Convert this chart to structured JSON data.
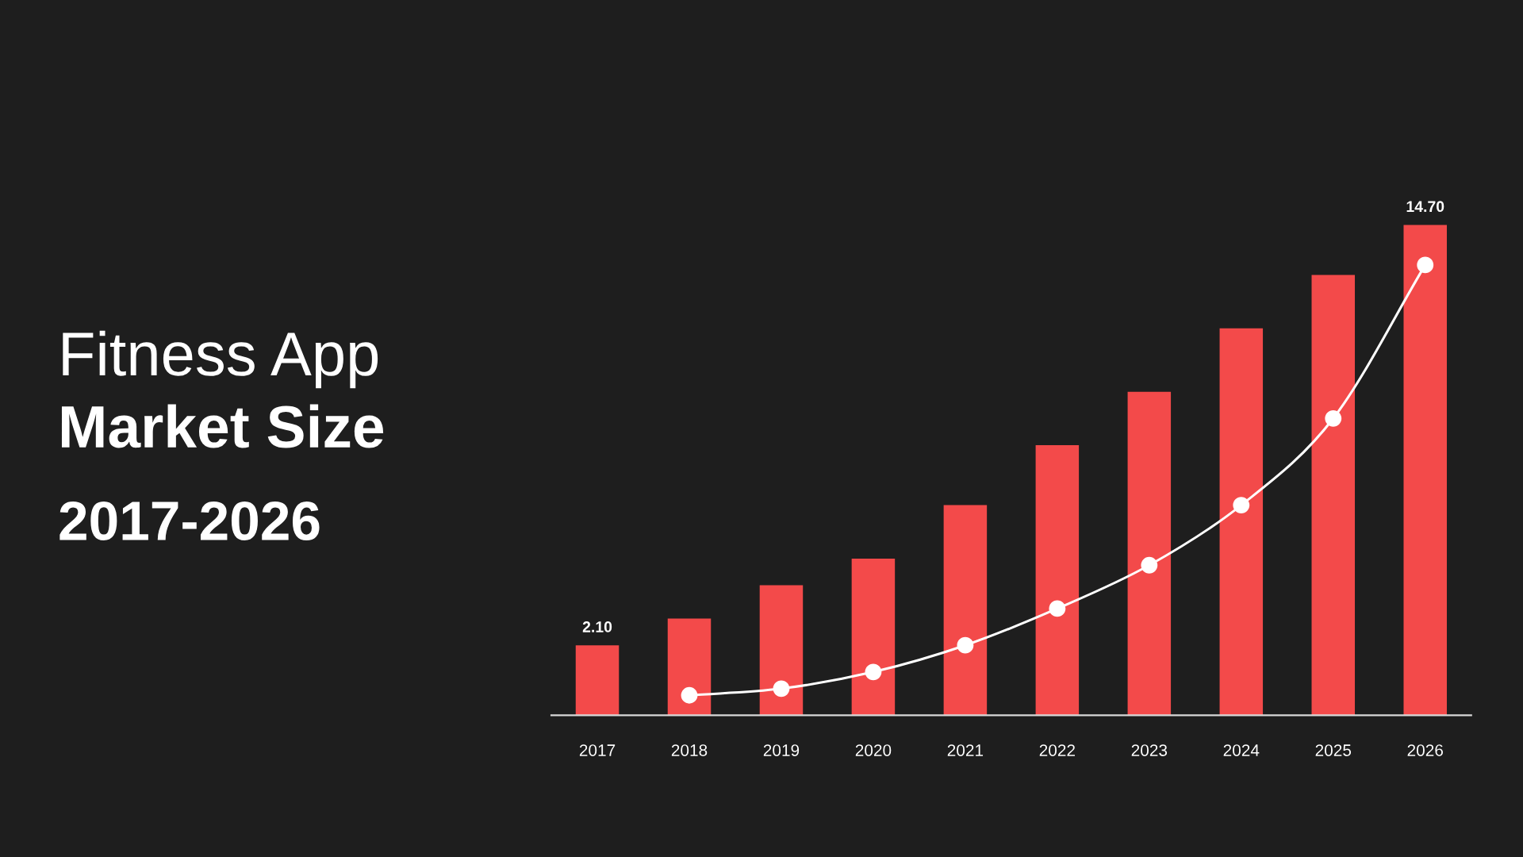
{
  "chart_data": {
    "type": "bar",
    "title": "Fitness App\nMarket Size",
    "subtitle": "2017-2026",
    "categories": [
      "2017",
      "2018",
      "2019",
      "2020",
      "2021",
      "2022",
      "2023",
      "2024",
      "2025",
      "2026"
    ],
    "series": [
      {
        "color": "#f34a4a",
        "values": [
          2.1,
          2.9,
          3.9,
          4.7,
          6.3,
          8.1,
          9.7,
          11.6,
          13.2,
          14.7
        ],
        "value_labels": [
          "2.10",
          null,
          null,
          null,
          null,
          null,
          null,
          null,
          null,
          "14.70"
        ]
      },
      {
        "type": "line",
        "color": "#ffffff",
        "values": [
          null,
          0.6,
          0.8,
          1.3,
          2.1,
          3.2,
          4.5,
          6.3,
          8.9,
          13.5
        ]
      }
    ],
    "marker": "circle",
    "tick_labels": "x"
  }
}
